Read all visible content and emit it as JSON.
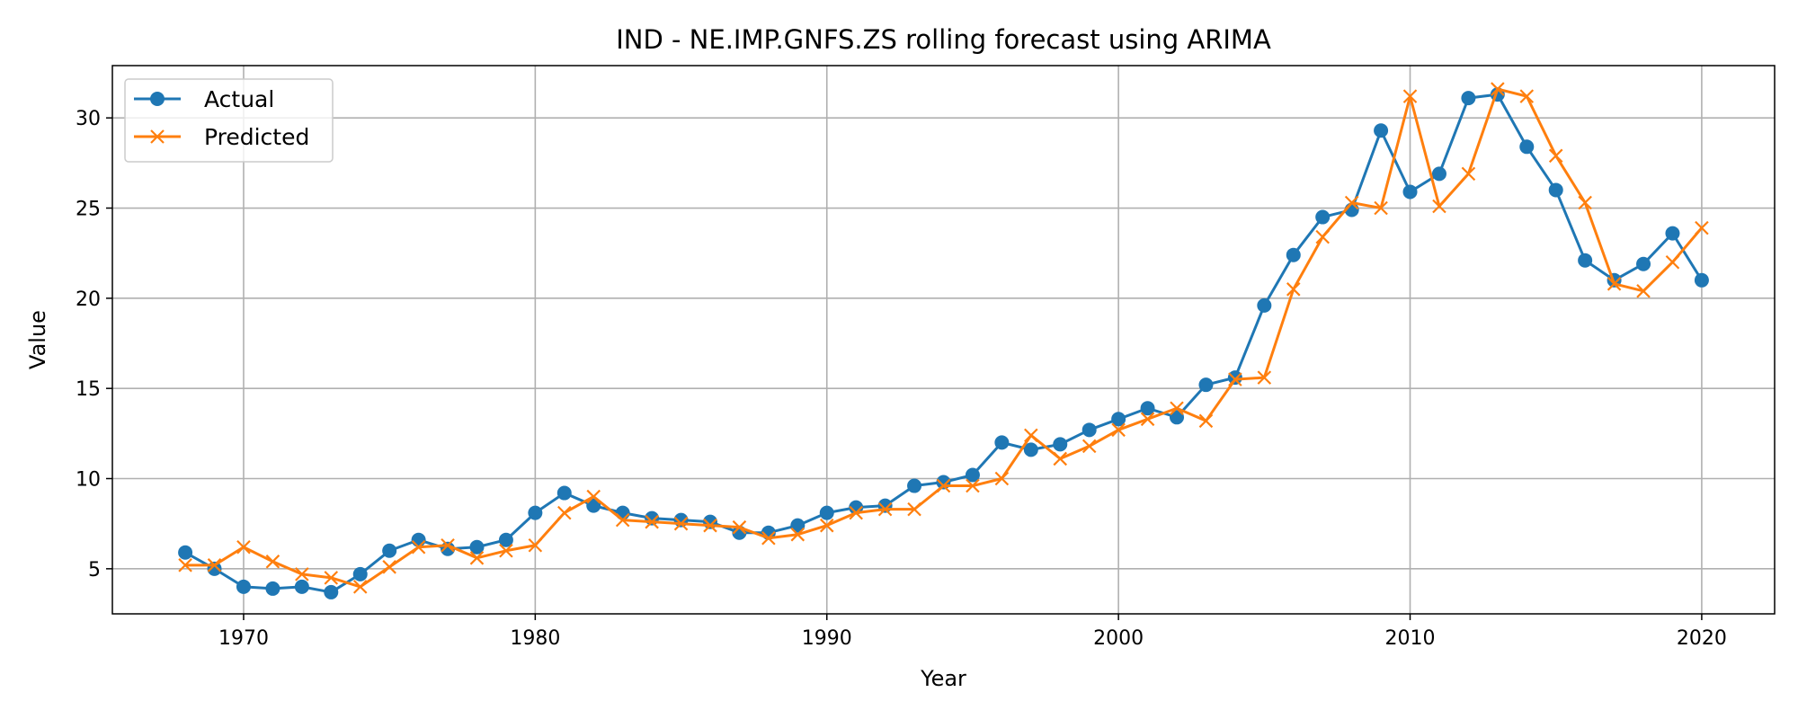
{
  "chart_data": {
    "type": "line",
    "title": "IND - NE.IMP.GNFS.ZS rolling forecast using ARIMA",
    "xlabel": "Year",
    "ylabel": "Value",
    "xlim": [
      1965.5,
      2022.5
    ],
    "ylim": [
      2.5,
      32.9
    ],
    "xticks": [
      1970,
      1980,
      1990,
      2000,
      2010,
      2020
    ],
    "yticks": [
      5,
      10,
      15,
      20,
      25,
      30
    ],
    "grid": true,
    "legend_position": "top-left",
    "x": [
      1968,
      1969,
      1970,
      1971,
      1972,
      1973,
      1974,
      1975,
      1976,
      1977,
      1978,
      1979,
      1980,
      1981,
      1982,
      1983,
      1984,
      1985,
      1986,
      1987,
      1988,
      1989,
      1990,
      1991,
      1992,
      1993,
      1994,
      1995,
      1996,
      1997,
      1998,
      1999,
      2000,
      2001,
      2002,
      2003,
      2004,
      2005,
      2006,
      2007,
      2008,
      2009,
      2010,
      2011,
      2012,
      2013,
      2014,
      2015,
      2016,
      2017,
      2018,
      2019,
      2020
    ],
    "series": [
      {
        "name": "Actual",
        "color": "#1f77b4",
        "marker": "circle",
        "values": [
          5.9,
          5.0,
          4.0,
          3.9,
          4.0,
          3.7,
          4.7,
          6.0,
          6.6,
          6.1,
          6.2,
          6.6,
          8.1,
          9.2,
          8.5,
          8.1,
          7.8,
          7.7,
          7.6,
          7.0,
          7.0,
          7.4,
          8.1,
          8.4,
          8.5,
          9.6,
          9.8,
          10.2,
          12.0,
          11.6,
          11.9,
          12.7,
          13.3,
          13.9,
          13.4,
          15.2,
          15.6,
          19.6,
          22.4,
          24.5,
          24.9,
          29.3,
          25.9,
          26.9,
          31.1,
          31.3,
          28.4,
          26.0,
          22.1,
          21.0,
          21.9,
          23.6,
          21.0
        ]
      },
      {
        "name": "Predicted",
        "color": "#ff7f0e",
        "marker": "x",
        "values": [
          5.2,
          5.2,
          6.2,
          5.4,
          4.7,
          4.5,
          4.0,
          5.1,
          6.2,
          6.3,
          5.6,
          6.0,
          6.3,
          8.1,
          9.0,
          7.7,
          7.6,
          7.5,
          7.4,
          7.3,
          6.7,
          6.9,
          7.4,
          8.1,
          8.3,
          8.3,
          9.6,
          9.6,
          10.0,
          12.4,
          11.1,
          11.8,
          12.7,
          13.3,
          13.9,
          13.2,
          15.5,
          15.6,
          20.5,
          23.4,
          25.3,
          25.0,
          31.2,
          25.1,
          26.9,
          31.6,
          31.2,
          27.9,
          25.3,
          20.8,
          20.4,
          22.0,
          23.9
        ]
      }
    ]
  }
}
